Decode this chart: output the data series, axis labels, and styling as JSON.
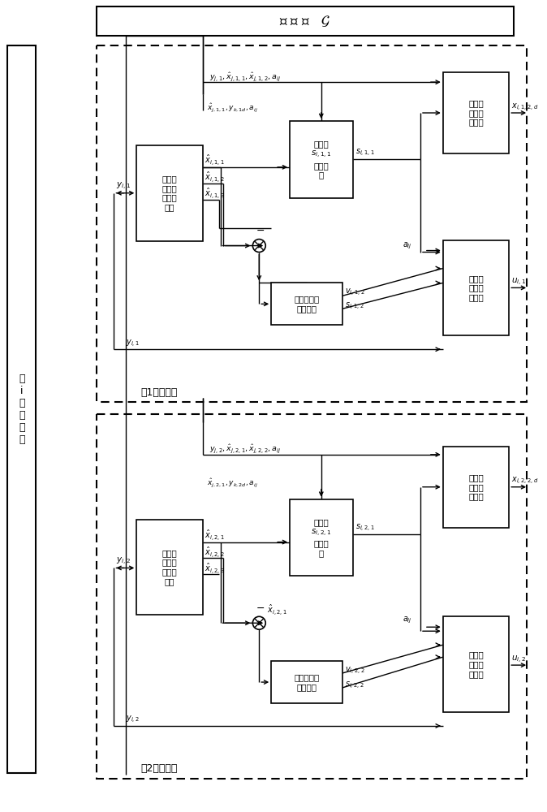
{
  "fig_bg": "#ffffff",
  "title_text": "有 向 图   $\\mathcal{G}$",
  "follower_text": "第\ni\n个\n跟\n随\n者",
  "c1_label": "第1子控制器",
  "c2_label": "第2子控制器",
  "eso1_text": "第一扩\n张状态\n观测器\n单元",
  "eso2_text": "第一扩\n张状态\n观测器\n单元",
  "err1_text": "误差面\n$s_{i,1,1}$\n运算单\n元",
  "err2_text": "误差面\n$s_{i,2,1}$\n运算单\n元",
  "nl1_text": "第一非\n线性运\n算单元",
  "nl2_text": "第二非\n线性运\n算单元",
  "nl3_text": "第三非\n线性运\n算单元",
  "nl4_text": "第四非\n线性运\n算单元",
  "td1_text": "第一跟踪微\n分器单元",
  "td2_text": "第二跟踪微\n分器单元"
}
